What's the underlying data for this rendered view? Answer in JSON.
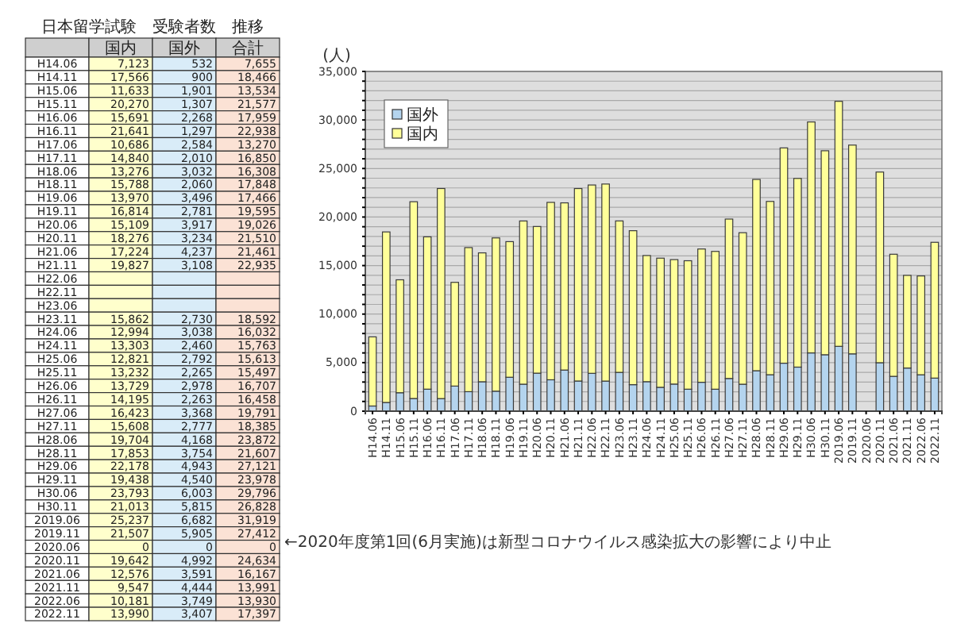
{
  "chart_data": [
    {
      "type": "heatmap",
      "title": "日本留学試験　受験者数　推移",
      "categories": [
        "国内",
        "国外",
        "合計"
      ],
      "y_categories": [
        "H14.06",
        "H14.11",
        "H15.06",
        "H15.11",
        "H16.06",
        "H16.11",
        "H17.06",
        "H17.11",
        "H18.06",
        "H18.11",
        "H19.06",
        "H19.11",
        "H20.06",
        "H20.11",
        "H21.06",
        "H21.11",
        "H22.06",
        "H22.11",
        "H23.06",
        "H23.11",
        "H24.06",
        "H24.11",
        "H25.06",
        "H25.11",
        "H26.06",
        "H26.11",
        "H27.06",
        "H27.11",
        "H28.06",
        "H28.11",
        "H29.06",
        "H29.11",
        "H30.06",
        "H30.11",
        "2019.06",
        "2019.11",
        "2020.06",
        "2020.11",
        "2021.06",
        "2021.11",
        "2022.06",
        "2022.11"
      ],
      "cells": [
        [
          7123,
          532,
          7655
        ],
        [
          17566,
          900,
          18466
        ],
        [
          11633,
          1901,
          13534
        ],
        [
          20270,
          1307,
          21577
        ],
        [
          15691,
          2268,
          17959
        ],
        [
          21641,
          1297,
          22938
        ],
        [
          10686,
          2584,
          13270
        ],
        [
          14840,
          2010,
          16850
        ],
        [
          13276,
          3032,
          16308
        ],
        [
          15788,
          2060,
          17848
        ],
        [
          13970,
          3496,
          17466
        ],
        [
          16814,
          2781,
          19595
        ],
        [
          15109,
          3917,
          19026
        ],
        [
          18276,
          3234,
          21510
        ],
        [
          17224,
          4237,
          21461
        ],
        [
          19827,
          3108,
          22935
        ],
        [
          null,
          null,
          null
        ],
        [
          null,
          null,
          null
        ],
        [
          null,
          null,
          null
        ],
        [
          15862,
          2730,
          18592
        ],
        [
          12994,
          3038,
          16032
        ],
        [
          13303,
          2460,
          15763
        ],
        [
          12821,
          2792,
          15613
        ],
        [
          13232,
          2265,
          15497
        ],
        [
          13729,
          2978,
          16707
        ],
        [
          14195,
          2263,
          16458
        ],
        [
          16423,
          3368,
          19791
        ],
        [
          15608,
          2777,
          18385
        ],
        [
          19704,
          4168,
          23872
        ],
        [
          17853,
          3754,
          21607
        ],
        [
          22178,
          4943,
          27121
        ],
        [
          19438,
          4540,
          23978
        ],
        [
          23793,
          6003,
          29796
        ],
        [
          21013,
          5815,
          26828
        ],
        [
          25237,
          6682,
          31919
        ],
        [
          21507,
          5905,
          27412
        ],
        [
          0,
          0,
          0
        ],
        [
          19642,
          4992,
          24634
        ],
        [
          12576,
          3591,
          16167
        ],
        [
          9547,
          4444,
          13991
        ],
        [
          10181,
          3749,
          13930
        ],
        [
          13990,
          3407,
          17397
        ]
      ],
      "cell_labels": [
        [
          "7,123",
          "532",
          "7,655"
        ],
        [
          "17,566",
          "900",
          "18,466"
        ],
        [
          "11,633",
          "1,901",
          "13,534"
        ],
        [
          "20,270",
          "1,307",
          "21,577"
        ],
        [
          "15,691",
          "2,268",
          "17,959"
        ],
        [
          "21,641",
          "1,297",
          "22,938"
        ],
        [
          "10,686",
          "2,584",
          "13,270"
        ],
        [
          "14,840",
          "2,010",
          "16,850"
        ],
        [
          "13,276",
          "3,032",
          "16,308"
        ],
        [
          "15,788",
          "2,060",
          "17,848"
        ],
        [
          "13,970",
          "3,496",
          "17,466"
        ],
        [
          "16,814",
          "2,781",
          "19,595"
        ],
        [
          "15,109",
          "3,917",
          "19,026"
        ],
        [
          "18,276",
          "3,234",
          "21,510"
        ],
        [
          "17,224",
          "4,237",
          "21,461"
        ],
        [
          "19,827",
          "3,108",
          "22,935"
        ],
        [
          null,
          null,
          null
        ],
        [
          null,
          null,
          null
        ],
        [
          null,
          null,
          null
        ],
        [
          "15,862",
          "2,730",
          "18,592"
        ],
        [
          "12,994",
          "3,038",
          "16,032"
        ],
        [
          "13,303",
          "2,460",
          "15,763"
        ],
        [
          "12,821",
          "2,792",
          "15,613"
        ],
        [
          "13,232",
          "2,265",
          "15,497"
        ],
        [
          "13,729",
          "2,978",
          "16,707"
        ],
        [
          "14,195",
          "2,263",
          "16,458"
        ],
        [
          "16,423",
          "3,368",
          "19,791"
        ],
        [
          "15,608",
          "2,777",
          "18,385"
        ],
        [
          "19,704",
          "4,168",
          "23,872"
        ],
        [
          "17,853",
          "3,754",
          "21,607"
        ],
        [
          "22,178",
          "4,943",
          "27,121"
        ],
        [
          "19,438",
          "4,540",
          "23,978"
        ],
        [
          "23,793",
          "6,003",
          "29,796"
        ],
        [
          "21,013",
          "5,815",
          "26,828"
        ],
        [
          "25,237",
          "6,682",
          "31,919"
        ],
        [
          "21,507",
          "5,905",
          "27,412"
        ],
        [
          "0",
          "0",
          "0"
        ],
        [
          "19,642",
          "4,992",
          "24,634"
        ],
        [
          "12,576",
          "3,591",
          "16,167"
        ],
        [
          "9,547",
          "4,444",
          "13,991"
        ],
        [
          "10,181",
          "3,749",
          "13,930"
        ],
        [
          "13,990",
          "3,407",
          "17,397"
        ]
      ],
      "annotations": [
        "←2020年度第1回(6月実施)は新型コロナウイルス感染拡大の影響により中止"
      ]
    },
    {
      "type": "bar",
      "ylabel": "(人)",
      "categories": [
        "H14.06",
        "H14.11",
        "H15.06",
        "H15.11",
        "H16.06",
        "H16.11",
        "H17.06",
        "H17.11",
        "H18.06",
        "H18.11",
        "H19.06",
        "H19.11",
        "H20.06",
        "H20.11",
        "H21.06",
        "H21.11",
        "H22.06",
        "H22.11",
        "H23.06",
        "H23.11",
        "H24.06",
        "H24.11",
        "H25.06",
        "H25.11",
        "H26.06",
        "H26.11",
        "H27.06",
        "H27.11",
        "H28.06",
        "H28.11",
        "H29.06",
        "H29.11",
        "H30.06",
        "H30.11",
        "2019.06",
        "2019.11",
        "2020.06",
        "2020.11",
        "2021.06",
        "2021.11",
        "2022.06",
        "2022.11"
      ],
      "series": [
        {
          "name": "国外",
          "color": "#b4d4ee",
          "values": [
            532,
            900,
            1901,
            1307,
            2268,
            1297,
            2584,
            2010,
            3032,
            2060,
            3496,
            2781,
            3917,
            3234,
            4237,
            3108,
            3900,
            3100,
            4000,
            2730,
            3038,
            2460,
            2792,
            2265,
            2978,
            2263,
            3368,
            2777,
            4168,
            3754,
            4943,
            4540,
            6003,
            5815,
            6682,
            5905,
            0,
            4992,
            3591,
            4444,
            3749,
            3407
          ]
        },
        {
          "name": "国内",
          "color": "#ffff99",
          "values": [
            7123,
            17566,
            11633,
            20270,
            15691,
            21641,
            10686,
            14840,
            13276,
            15788,
            13970,
            16814,
            15109,
            18276,
            17224,
            19827,
            19400,
            20300,
            15600,
            15862,
            12994,
            13303,
            12821,
            13232,
            13729,
            14195,
            16423,
            15608,
            19704,
            17853,
            22178,
            19438,
            23793,
            21013,
            25237,
            21507,
            0,
            19642,
            12576,
            9547,
            10181,
            13990
          ]
        }
      ],
      "stacked": true,
      "ylim": [
        0,
        35000
      ],
      "yticks": [
        0,
        {
          "value": 1000,
          "label": null
        },
        {
          "value": 2000,
          "label": null
        },
        {
          "value": 3000,
          "label": null
        },
        {
          "value": 4000,
          "label": null
        },
        {
          "value": 5000,
          "label": "5,000"
        },
        {
          "value": 6000,
          "label": null
        },
        {
          "value": 7000,
          "label": null
        },
        {
          "value": 8000,
          "label": null
        },
        {
          "value": 9000,
          "label": null
        },
        {
          "value": 10000,
          "label": "10,000"
        },
        {
          "value": 11000,
          "label": null
        },
        {
          "value": 12000,
          "label": null
        },
        {
          "value": 13000,
          "label": null
        },
        {
          "value": 14000,
          "label": null
        },
        {
          "value": 15000,
          "label": "15,000"
        },
        {
          "value": 16000,
          "label": null
        },
        {
          "value": 17000,
          "label": null
        },
        {
          "value": 18000,
          "label": null
        },
        {
          "value": 19000,
          "label": null
        },
        {
          "value": 20000,
          "label": "20,000"
        },
        {
          "value": 21000,
          "label": null
        },
        {
          "value": 22000,
          "label": null
        },
        {
          "value": 23000,
          "label": null
        },
        {
          "value": 24000,
          "label": null
        },
        {
          "value": 25000,
          "label": "25,000"
        },
        {
          "value": 26000,
          "label": null
        },
        {
          "value": 27000,
          "label": null
        },
        {
          "value": 28000,
          "label": null
        },
        {
          "value": 29000,
          "label": null
        },
        {
          "value": 30000,
          "label": "30,000"
        },
        {
          "value": 31000,
          "label": null
        },
        {
          "value": 32000,
          "label": null
        },
        {
          "value": 33000,
          "label": null
        },
        {
          "value": 34000,
          "label": null
        },
        {
          "value": 35000,
          "label": "35,000"
        }
      ],
      "grid": "y",
      "legend": "top left"
    }
  ]
}
